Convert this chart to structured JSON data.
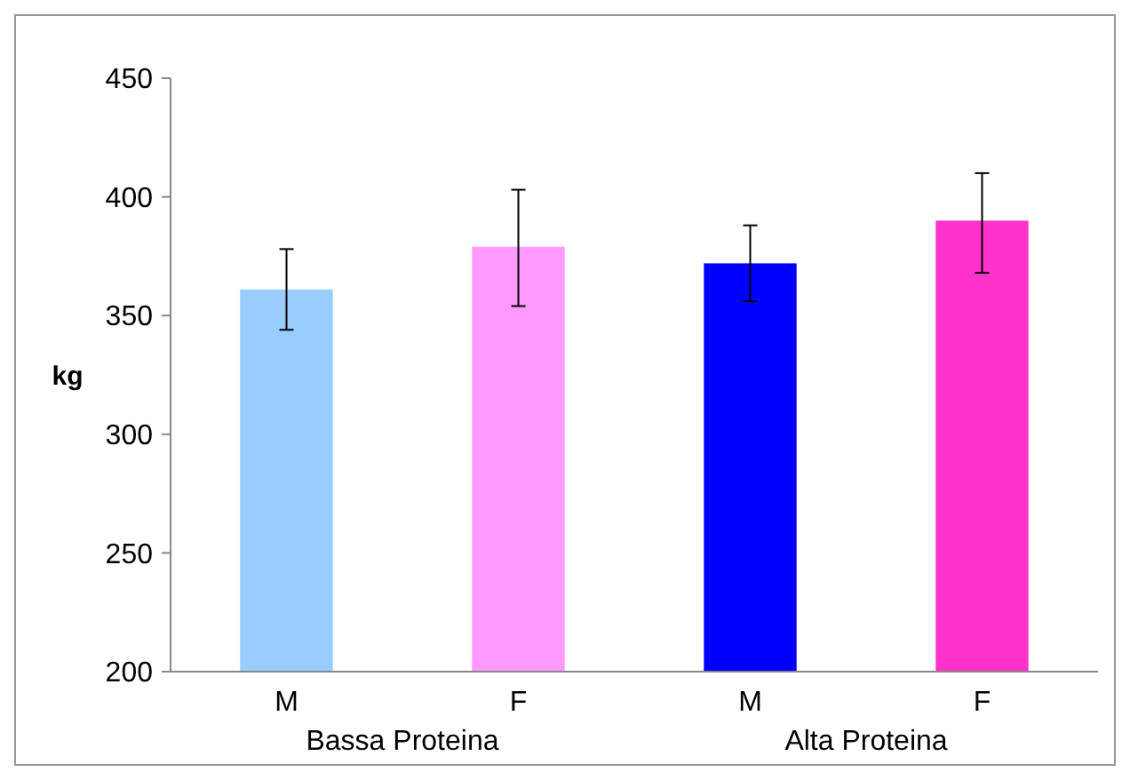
{
  "chart_data": {
    "type": "bar",
    "ylabel": "kg",
    "categories": [
      "M",
      "F",
      "M",
      "F"
    ],
    "values": [
      361,
      379,
      372,
      390
    ],
    "colors": [
      "#99ccff",
      "#ff99ff",
      "#0000ff",
      "#ff33cc"
    ],
    "errors": [
      [
        344,
        378
      ],
      [
        354,
        403
      ],
      [
        356,
        388
      ],
      [
        368,
        410
      ]
    ],
    "annotations": [
      "Bassa Proteina",
      "Alta Proteina"
    ],
    "ylim": [
      200,
      450
    ],
    "yticks": [
      200,
      250,
      300,
      350,
      400,
      450
    ]
  }
}
